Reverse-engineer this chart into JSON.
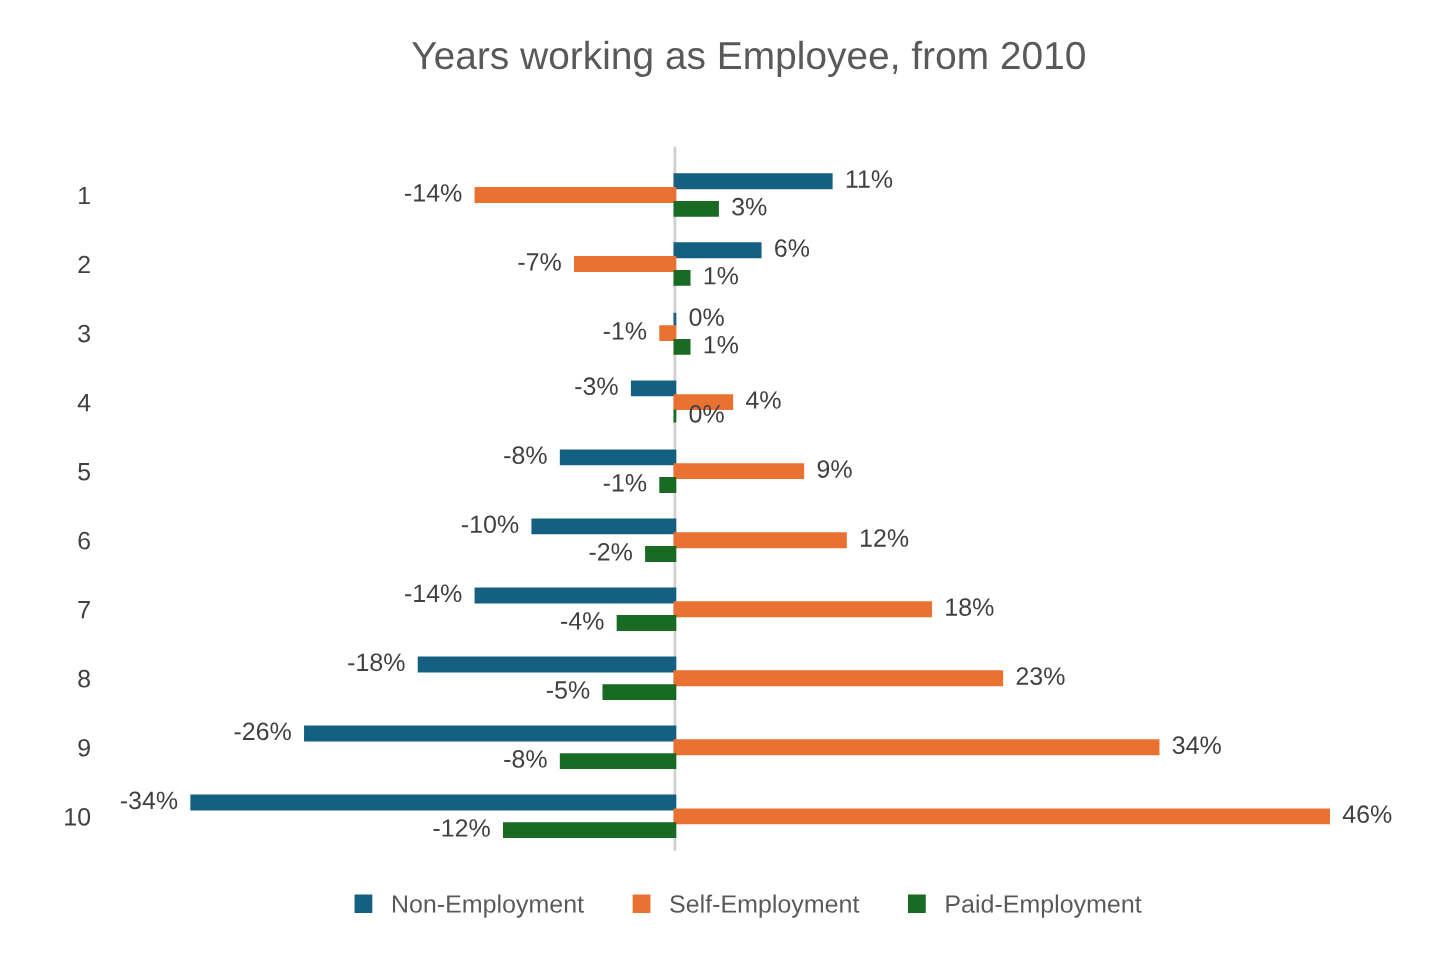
{
  "chart_data": {
    "type": "bar",
    "orientation": "horizontal",
    "title": "Years working as Employee, from 2010",
    "categories": [
      "1",
      "2",
      "3",
      "4",
      "5",
      "6",
      "7",
      "8",
      "9",
      "10"
    ],
    "series": [
      {
        "name": "Non-Employment",
        "color": "#156082",
        "values": [
          11,
          6,
          0,
          -3,
          -8,
          -10,
          -14,
          -18,
          -26,
          -34
        ],
        "value_labels": [
          "11%",
          "6%",
          "0%",
          "-3%",
          "-8%",
          "-10%",
          "-14%",
          "-18%",
          "-26%",
          "-34%"
        ]
      },
      {
        "name": "Self-Employment",
        "color": "#e97132",
        "values": [
          -14,
          -7,
          -1,
          4,
          9,
          12,
          18,
          23,
          34,
          46
        ],
        "value_labels": [
          "-14%",
          "-7%",
          "-1%",
          "4%",
          "9%",
          "12%",
          "18%",
          "23%",
          "34%",
          "46%"
        ]
      },
      {
        "name": "Paid-Employment",
        "color": "#196b24",
        "values": [
          3,
          1,
          1,
          0,
          -1,
          -2,
          -4,
          -5,
          -8,
          -12
        ],
        "value_labels": [
          "3%",
          "1%",
          "1%",
          "0%",
          "-1%",
          "-2%",
          "-4%",
          "-5%",
          "-8%",
          "-12%"
        ]
      }
    ],
    "legend": "bottom",
    "grid": false
  }
}
